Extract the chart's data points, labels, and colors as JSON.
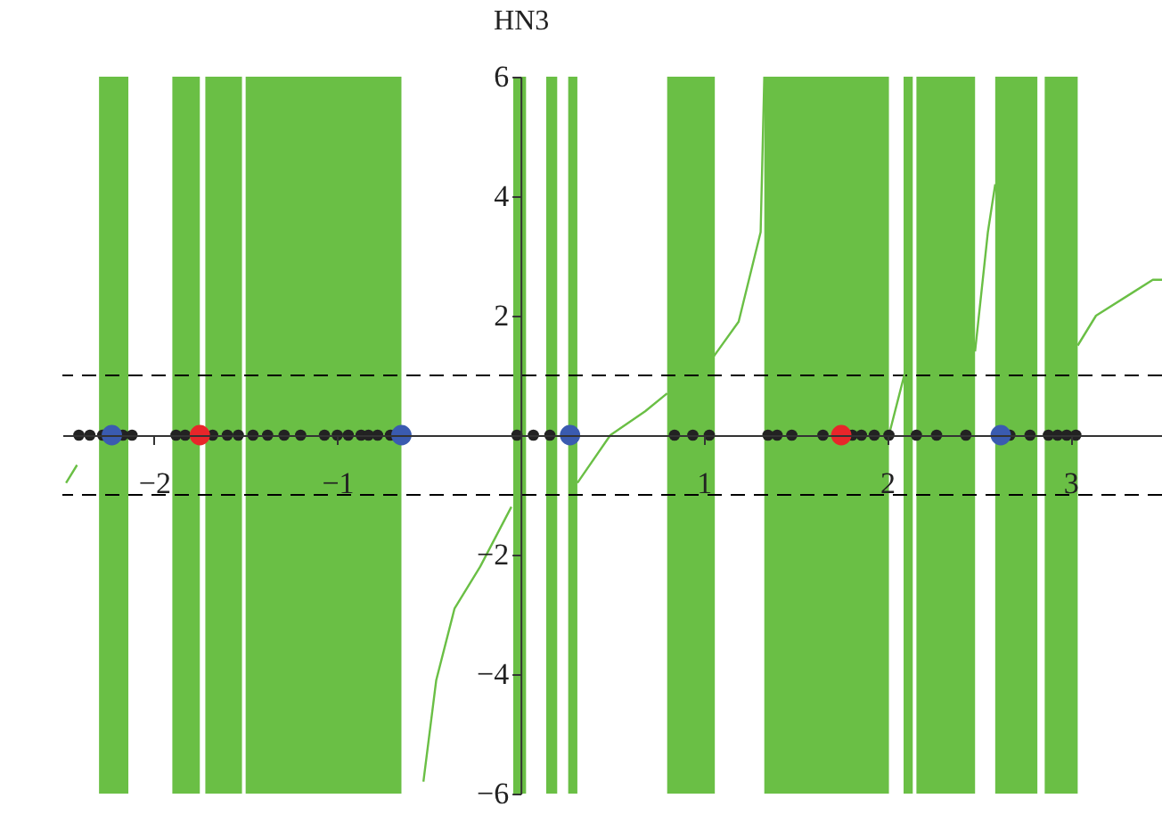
{
  "chart_data": {
    "type": "line",
    "ylabel": "HN3",
    "xlim": [
      -2.5,
      3.5
    ],
    "ylim": [
      -6,
      6
    ],
    "xticks": [
      -2,
      -1,
      1,
      2,
      3
    ],
    "yticks": [
      -6,
      -4,
      -2,
      2,
      4,
      6
    ],
    "bands": [
      {
        "axis": "x",
        "from": -2.3,
        "to": -2.14,
        "color": "#6abf45"
      },
      {
        "axis": "x",
        "from": -1.9,
        "to": -1.75,
        "color": "#6abf45"
      },
      {
        "axis": "x",
        "from": -1.72,
        "to": -1.52,
        "color": "#6abf45"
      },
      {
        "axis": "x",
        "from": -1.5,
        "to": -0.65,
        "color": "#6abf45"
      },
      {
        "axis": "x",
        "from": -0.04,
        "to": 0.03,
        "color": "#6abf45"
      },
      {
        "axis": "x",
        "from": 0.14,
        "to": 0.2,
        "color": "#6abf45"
      },
      {
        "axis": "x",
        "from": 0.26,
        "to": 0.31,
        "color": "#6abf45"
      },
      {
        "axis": "x",
        "from": 0.8,
        "to": 1.06,
        "color": "#6abf45"
      },
      {
        "axis": "x",
        "from": 1.33,
        "to": 2.01,
        "color": "#6abf45"
      },
      {
        "axis": "x",
        "from": 2.09,
        "to": 2.14,
        "color": "#6abf45"
      },
      {
        "axis": "x",
        "from": 2.16,
        "to": 2.48,
        "color": "#6abf45"
      },
      {
        "axis": "x",
        "from": 2.59,
        "to": 2.82,
        "color": "#6abf45"
      },
      {
        "axis": "x",
        "from": 2.86,
        "to": 3.04,
        "color": "#6abf45"
      }
    ],
    "ref_lines": [
      {
        "axis": "y",
        "value": 1,
        "color": "#000000",
        "line_style": "dashed"
      },
      {
        "axis": "y",
        "value": -1,
        "color": "#000000",
        "line_style": "dashed"
      }
    ],
    "series": [
      {
        "type": "line",
        "color": "#6abf45",
        "marker": "none",
        "line_style": "solid",
        "x": [
          -2.48,
          -2.42,
          null,
          -0.53,
          -0.46,
          -0.36,
          -0.22,
          -0.05,
          null,
          0.31,
          0.49,
          0.68,
          0.8,
          null,
          1.05,
          1.19,
          1.31,
          1.33,
          null,
          2.01,
          2.11,
          null,
          2.48,
          2.55,
          2.59,
          null,
          3.04,
          3.14,
          3.45,
          3.5
        ],
        "values": [
          -0.8,
          -0.5,
          null,
          -5.8,
          -4.1,
          -2.9,
          -2.2,
          -1.2,
          null,
          -0.8,
          0,
          0.4,
          0.7,
          null,
          1.3,
          1.9,
          3.4,
          6,
          null,
          0,
          1.2,
          null,
          1.4,
          3.4,
          4.2,
          null,
          1.5,
          2,
          2.6,
          2.6
        ]
      },
      {
        "type": "scatter",
        "color": "#222222",
        "marker": "circle",
        "x": [
          -2.41,
          -2.35,
          -2.28,
          -2.17,
          -2.12,
          -1.88,
          -1.83,
          -1.68,
          -1.6,
          -1.54,
          -1.46,
          -1.38,
          -1.29,
          -1.2,
          -1.07,
          -1,
          -0.94,
          -0.87,
          -0.83,
          -0.78,
          -0.71,
          -0.02,
          0.07,
          0.16,
          0.84,
          0.94,
          1.03,
          1.35,
          1.4,
          1.48,
          1.65,
          1.81,
          1.86,
          1.93,
          2.01,
          2.16,
          2.27,
          2.43,
          2.67,
          2.78,
          2.88,
          2.93,
          2.98,
          3.03
        ],
        "values": [
          0,
          0,
          0,
          0,
          0,
          0,
          0,
          0,
          0,
          0,
          0,
          0,
          0,
          0,
          0,
          0,
          0,
          0,
          0,
          0,
          0,
          0,
          0,
          0,
          0,
          0,
          0,
          0,
          0,
          0,
          0,
          0,
          0,
          0,
          0,
          0,
          0,
          0,
          0,
          0,
          0,
          0,
          0,
          0
        ]
      },
      {
        "type": "scatter",
        "color": "#3a5bb0",
        "marker": "circle",
        "x": [
          -2.23,
          -0.65,
          0.27,
          2.62
        ],
        "values": [
          0,
          0,
          0,
          0
        ]
      },
      {
        "type": "scatter",
        "color": "#e8262a",
        "marker": "circle",
        "x": [
          -1.75,
          1.75
        ],
        "values": [
          0,
          0
        ]
      }
    ]
  }
}
